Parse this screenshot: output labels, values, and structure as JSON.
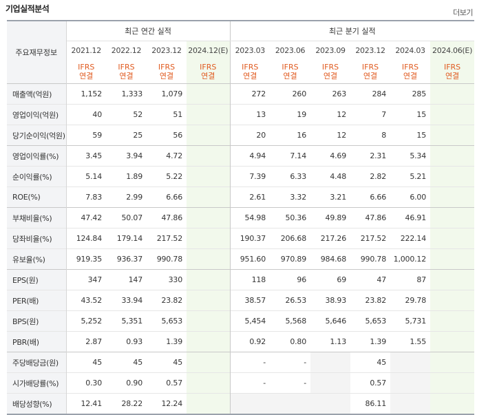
{
  "title": "기업실적분석",
  "more_label": "더보기",
  "header": {
    "row_label": "주요재무정보",
    "annual_group": "최근 연간 실적",
    "quarter_group": "최근 분기 실적",
    "periods": [
      "2021.12",
      "2022.12",
      "2023.12",
      "2024.12(E)",
      "2023.03",
      "2023.06",
      "2023.09",
      "2023.12",
      "2024.03",
      "2024.06(E)"
    ],
    "ifrs_top": "IFRS",
    "ifrs_bottom": "연결"
  },
  "rows": [
    {
      "label": "매출액(억원)",
      "values": [
        "1,152",
        "1,333",
        "1,079",
        "",
        "272",
        "260",
        "263",
        "284",
        "285",
        ""
      ]
    },
    {
      "label": "영업이익(억원)",
      "values": [
        "40",
        "52",
        "51",
        "",
        "13",
        "19",
        "12",
        "7",
        "15",
        ""
      ]
    },
    {
      "label": "당기순이익(억원)",
      "values": [
        "59",
        "25",
        "56",
        "",
        "20",
        "16",
        "12",
        "8",
        "15",
        ""
      ]
    },
    {
      "label": "영업이익률(%)",
      "values": [
        "3.45",
        "3.94",
        "4.72",
        "",
        "4.94",
        "7.14",
        "4.69",
        "2.31",
        "5.34",
        ""
      ]
    },
    {
      "label": "순이익률(%)",
      "values": [
        "5.14",
        "1.89",
        "5.22",
        "",
        "7.39",
        "6.33",
        "4.48",
        "2.82",
        "5.21",
        ""
      ]
    },
    {
      "label": "ROE(%)",
      "values": [
        "7.83",
        "2.99",
        "6.66",
        "",
        "2.61",
        "3.32",
        "3.21",
        "6.66",
        "6.00",
        ""
      ]
    },
    {
      "label": "부채비율(%)",
      "values": [
        "47.42",
        "50.07",
        "47.86",
        "",
        "54.98",
        "50.36",
        "49.89",
        "47.86",
        "46.91",
        ""
      ]
    },
    {
      "label": "당좌비율(%)",
      "values": [
        "124.84",
        "179.14",
        "217.52",
        "",
        "190.37",
        "206.68",
        "217.26",
        "217.52",
        "222.14",
        ""
      ]
    },
    {
      "label": "유보율(%)",
      "values": [
        "919.35",
        "936.37",
        "990.78",
        "",
        "951.60",
        "970.89",
        "984.68",
        "990.78",
        "1,000.12",
        ""
      ]
    },
    {
      "label": "EPS(원)",
      "values": [
        "347",
        "147",
        "330",
        "",
        "118",
        "96",
        "69",
        "47",
        "87",
        ""
      ]
    },
    {
      "label": "PER(배)",
      "values": [
        "43.52",
        "33.94",
        "23.82",
        "",
        "38.57",
        "26.53",
        "38.93",
        "23.82",
        "29.78",
        ""
      ]
    },
    {
      "label": "BPS(원)",
      "values": [
        "5,252",
        "5,351",
        "5,653",
        "",
        "5,454",
        "5,568",
        "5,646",
        "5,653",
        "5,731",
        ""
      ]
    },
    {
      "label": "PBR(배)",
      "values": [
        "2.87",
        "0.93",
        "1.39",
        "",
        "0.92",
        "0.80",
        "1.13",
        "1.39",
        "1.55",
        ""
      ]
    },
    {
      "label": "주당배당금(원)",
      "values": [
        "45",
        "45",
        "45",
        "",
        "-",
        "-",
        "",
        "45",
        "",
        ""
      ]
    },
    {
      "label": "시가배당률(%)",
      "values": [
        "0.30",
        "0.90",
        "0.57",
        "",
        "-",
        "-",
        "",
        "0.57",
        "",
        ""
      ]
    },
    {
      "label": "배당성향(%)",
      "values": [
        "12.41",
        "28.22",
        "12.24",
        "",
        "",
        "",
        "",
        "86.11",
        "",
        ""
      ]
    }
  ]
}
